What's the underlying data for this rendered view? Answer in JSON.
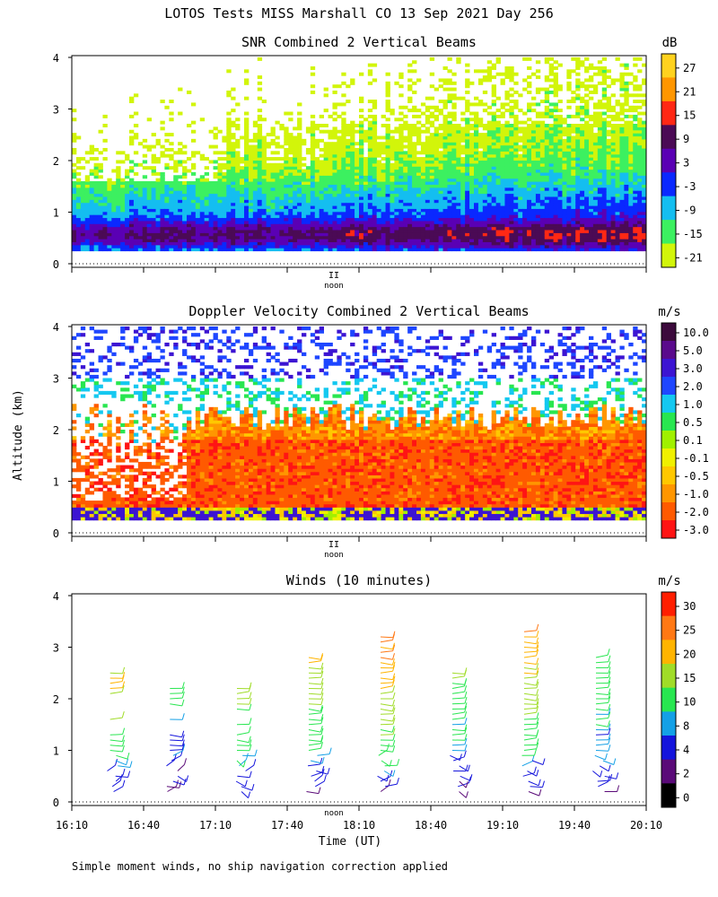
{
  "figure": {
    "title": "LOTOS Tests MISS Marshall CO  13 Sep 2021 Day 256",
    "y_axis_label": "Altitude (km)",
    "x_axis_label": "Time (UT)",
    "footnote": "Simple moment winds, no ship navigation correction applied",
    "noon_label": "noon",
    "noon_marker": "II"
  },
  "chart_data": [
    {
      "type": "heatmap",
      "title": "SNR Combined 2 Vertical Beams",
      "ylabel": "Altitude (km)",
      "ylim": [
        0,
        4
      ],
      "yticks": [
        "0",
        "1",
        "2",
        "3",
        "4"
      ],
      "colorbar_unit": "dB",
      "colorbar_labels": [
        "27",
        "21",
        "15",
        "9",
        "3",
        "-3",
        "-9",
        "-15",
        "-21"
      ],
      "colorbar_colors": [
        "#ffd21e",
        "#ff9600",
        "#ff2814",
        "#4b0a55",
        "#5a00b4",
        "#0a28ff",
        "#14bef0",
        "#3cf060",
        "#d2f50a"
      ],
      "altitude_km": [
        0.25,
        0.5,
        0.75,
        1.0,
        1.25,
        1.5,
        1.75,
        2.0,
        2.25,
        2.5,
        2.75,
        3.0,
        3.25,
        3.5,
        3.75,
        4.0
      ],
      "dominant_snr_db_by_altitude": [
        4,
        5,
        2,
        -3,
        -6,
        -8,
        -10,
        -12,
        -14,
        -16,
        -18,
        -20,
        -20,
        -21,
        -21,
        -21
      ]
    },
    {
      "type": "heatmap",
      "title": "Doppler Velocity Combined 2 Vertical Beams",
      "ylabel": "Altitude (km)",
      "ylim": [
        0,
        4
      ],
      "yticks": [
        "0",
        "1",
        "2",
        "3",
        "4"
      ],
      "colorbar_unit": "m/s",
      "colorbar_labels": [
        "10.0",
        "5.0",
        "3.0",
        "2.0",
        "1.0",
        "0.5",
        "0.1",
        "-0.1",
        "-0.5",
        "-1.0",
        "-2.0",
        "-3.0"
      ],
      "colorbar_colors": [
        "#3c0a3c",
        "#5a0a8c",
        "#3c14d2",
        "#1e46ff",
        "#14c8f0",
        "#28e650",
        "#a0f000",
        "#f0f000",
        "#ffc800",
        "#ff9600",
        "#ff5a00",
        "#ff1414"
      ],
      "altitude_km": [
        0.25,
        0.5,
        0.75,
        1.0,
        1.25,
        1.5,
        1.75,
        2.0,
        2.25,
        2.5,
        2.75,
        3.0,
        3.25,
        3.5,
        3.75,
        4.0
      ],
      "dominant_velocity_ms_by_altitude": [
        1.0,
        3.0,
        -0.5,
        -1.5,
        -1.5,
        -1.0,
        -1.0,
        -0.8,
        -0.5,
        0.5,
        1.0,
        1.0,
        1.5,
        2.0,
        2.0,
        2.0
      ]
    },
    {
      "type": "barbs",
      "title": "Winds (10 minutes)",
      "ylabel": "Altitude (km)",
      "xlabel": "Time (UT)",
      "ylim": [
        0,
        4
      ],
      "yticks": [
        "0",
        "1",
        "2",
        "3",
        "4"
      ],
      "x_ticks": [
        "16:10",
        "16:40",
        "17:10",
        "17:40",
        "18:10",
        "18:40",
        "19:10",
        "19:40",
        "20:10"
      ],
      "colorbar_unit": "m/s",
      "colorbar_labels": [
        "30",
        "25",
        "20",
        "15",
        "10",
        "8",
        "4",
        "2",
        "0"
      ],
      "colorbar_colors": [
        "#ff1e00",
        "#ff7814",
        "#ffb400",
        "#a0dc28",
        "#28e650",
        "#14a0e6",
        "#1414dc",
        "#5a0a78",
        "#000000"
      ],
      "profile_times": [
        "16:26",
        "16:51",
        "17:19",
        "17:49",
        "18:19",
        "18:49",
        "19:19",
        "19:49"
      ],
      "profile_top_speed_ms": [
        22,
        12,
        18,
        20,
        28,
        16,
        25,
        16
      ],
      "profile_top_altitude_km": [
        2.6,
        2.3,
        2.3,
        2.9,
        3.3,
        2.6,
        3.4,
        2.9
      ]
    }
  ]
}
